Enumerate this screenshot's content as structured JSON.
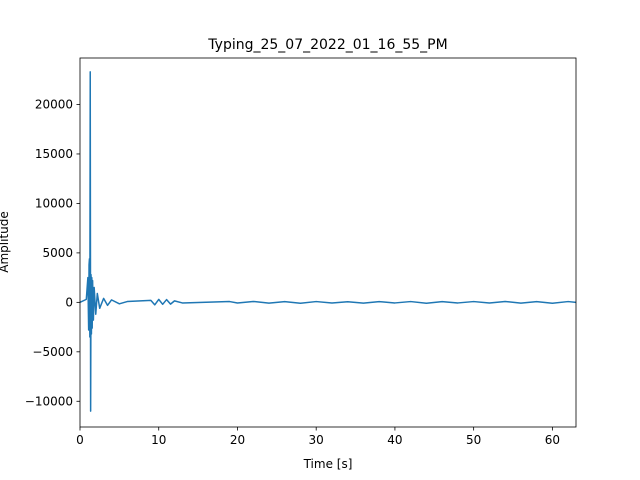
{
  "chart_data": {
    "type": "line",
    "title": "Typing_25_07_2022_01_16_55_PM",
    "xlabel": "Time [s]",
    "ylabel": "Amplitude",
    "xlim": [
      0,
      63
    ],
    "ylim": [
      -12600,
      24700
    ],
    "x_ticks": [
      0,
      10,
      20,
      30,
      40,
      50,
      60
    ],
    "y_ticks": [
      -10000,
      -5000,
      0,
      5000,
      10000,
      15000,
      20000
    ],
    "grid": false,
    "legend": "none",
    "color": "#1f77b4",
    "series": [
      {
        "x": [
          0,
          0.8,
          1.0,
          1.1,
          1.15,
          1.2,
          1.25,
          1.3,
          1.35,
          1.4,
          1.45,
          1.5,
          1.55,
          1.6,
          1.7,
          1.8,
          2.0,
          2.2,
          2.5,
          3.0,
          3.5,
          4.0,
          5.0,
          6.0,
          9.0,
          9.5,
          10.0,
          10.5,
          11.0,
          11.5,
          12.0,
          13.0,
          19.0,
          20.0,
          22.0,
          24.0,
          26.0,
          28.0,
          30.0,
          32.0,
          34.0,
          36.0,
          38.0,
          40.0,
          42.0,
          44.0,
          46.0,
          48.0,
          50.0,
          52.0,
          54.0,
          56.0,
          58.0,
          60.0,
          62.0,
          63.0
        ],
        "y": [
          0,
          300,
          2500,
          -2800,
          3800,
          4400,
          -3500,
          23300,
          -11000,
          2800,
          -3200,
          2500,
          -2600,
          2200,
          -1800,
          1500,
          -1200,
          900,
          -600,
          400,
          -300,
          250,
          -150,
          80,
          200,
          -250,
          300,
          -200,
          280,
          -180,
          150,
          -60,
          80,
          -70,
          90,
          -80,
          70,
          -90,
          80,
          -70,
          60,
          -80,
          70,
          -60,
          80,
          -90,
          70,
          -60,
          80,
          -70,
          90,
          -80,
          70,
          -90,
          80,
          0
        ]
      }
    ]
  }
}
